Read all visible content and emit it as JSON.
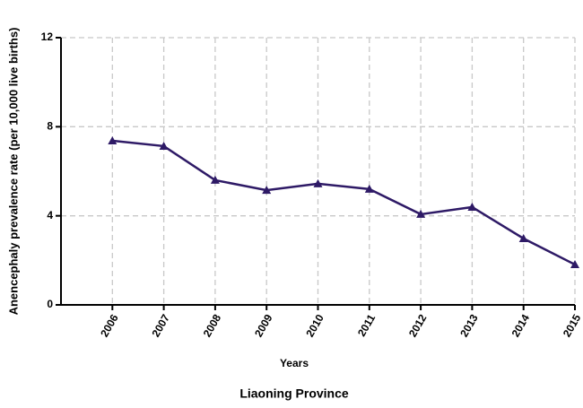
{
  "chart_data": {
    "type": "line",
    "title": "Liaoning Province",
    "x_label": "Years",
    "y_label": "Anencephaly prevalence rate (per 10,000 live births)",
    "x": [
      2006,
      2007,
      2008,
      2009,
      2010,
      2011,
      2012,
      2013,
      2014,
      2015
    ],
    "series": [
      {
        "name": "Liaoning Province",
        "color": "#2e1a66",
        "values": [
          7.37,
          7.13,
          5.6,
          5.15,
          5.44,
          5.2,
          4.07,
          4.39,
          2.98,
          1.81
        ]
      }
    ],
    "xlim": [
      2005,
      2015
    ],
    "xticks": [
      2006,
      2007,
      2008,
      2009,
      2010,
      2011,
      2012,
      2013,
      2014,
      2015
    ],
    "ylim": [
      0,
      12
    ],
    "yticks": [
      0,
      4,
      8,
      12
    ],
    "grid": true,
    "marker": "triangle"
  }
}
